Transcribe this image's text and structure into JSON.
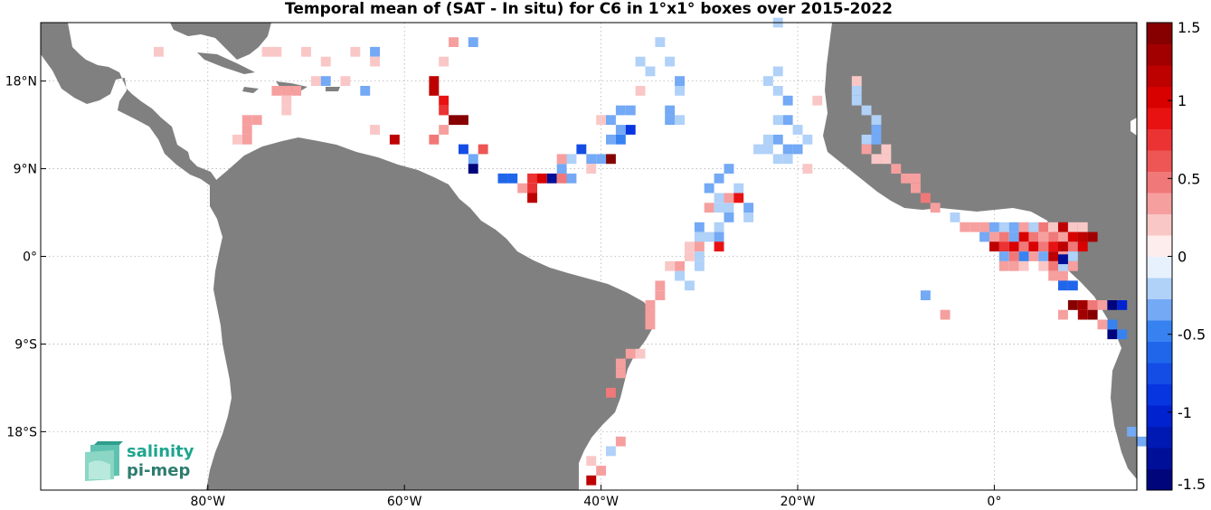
{
  "title": "Temporal mean of (SAT - In situ) for C6 in 1°x1° boxes over 2015-2022",
  "axes": {
    "lon_ticks": [
      {
        "value": -80,
        "label": "80°W"
      },
      {
        "value": -60,
        "label": "60°W"
      },
      {
        "value": -40,
        "label": "40°W"
      },
      {
        "value": -20,
        "label": "20°W"
      },
      {
        "value": 0,
        "label": "0°"
      }
    ],
    "lat_ticks": [
      {
        "value": 18,
        "label": "18°N"
      },
      {
        "value": 9,
        "label": "9°N"
      },
      {
        "value": 0,
        "label": "0°"
      },
      {
        "value": -9,
        "label": "9°S"
      },
      {
        "value": -18,
        "label": "18°S"
      }
    ],
    "lon_range": [
      -97,
      14.5
    ],
    "lat_range": [
      -24,
      24
    ],
    "grid": true
  },
  "colorbar": {
    "range": [
      -1.5,
      1.5
    ],
    "tick_labels": [
      {
        "value": 1.5,
        "label": "1.5"
      },
      {
        "value": 1,
        "label": "1"
      },
      {
        "value": 0.5,
        "label": "0.5"
      },
      {
        "value": 0,
        "label": "0"
      },
      {
        "value": -0.5,
        "label": "-0.5"
      },
      {
        "value": -1,
        "label": "-1"
      },
      {
        "value": -1.5,
        "label": "-1.5"
      }
    ]
  },
  "logo": {
    "line1": "salinity",
    "line2": "pi-mep"
  },
  "colors": {
    "land": "#808080",
    "ocean": "#ffffff",
    "positive": "#cc0000",
    "negative": "#0044cc"
  },
  "chart_data": {
    "type": "heatmap",
    "cell_size_deg": 1,
    "cells": [
      [
        -65,
        21,
        0.2
      ],
      [
        -63,
        21,
        -0.3
      ],
      [
        -63,
        20,
        0.2
      ],
      [
        -55,
        22,
        0.3
      ],
      [
        -53,
        22,
        -0.3
      ],
      [
        -56,
        20,
        0.2
      ],
      [
        -57,
        18,
        1.2
      ],
      [
        -57,
        17,
        1.1
      ],
      [
        -56,
        16,
        0.9
      ],
      [
        -56,
        15,
        0.7
      ],
      [
        -55,
        14,
        1.4
      ],
      [
        -54,
        14,
        1.4
      ],
      [
        -56,
        13,
        0.3
      ],
      [
        -61,
        12,
        1.2
      ],
      [
        -57,
        12,
        0.5
      ],
      [
        -54,
        11,
        -0.7
      ],
      [
        -53,
        10,
        -0.3
      ],
      [
        -52,
        11,
        0.6
      ],
      [
        -53,
        9,
        -1.4
      ],
      [
        -50,
        8,
        -0.6
      ],
      [
        -49,
        8,
        -0.6
      ],
      [
        -48,
        7,
        0.4
      ],
      [
        -47,
        8,
        0.7
      ],
      [
        -47,
        7,
        0.8
      ],
      [
        -47,
        6,
        1.1
      ],
      [
        -46,
        8,
        1.0
      ],
      [
        -45,
        8,
        -1.3
      ],
      [
        -44,
        8,
        0.5
      ],
      [
        -44,
        9,
        -0.3
      ],
      [
        -43,
        8,
        -0.3
      ],
      [
        -44,
        10,
        0.3
      ],
      [
        -43,
        10,
        -0.2
      ],
      [
        -42,
        11,
        -0.7
      ],
      [
        -40,
        14,
        0.2
      ],
      [
        -39,
        14,
        -0.4
      ],
      [
        -38,
        15,
        -0.4
      ],
      [
        -37,
        15,
        -0.3
      ],
      [
        -39,
        12,
        -0.4
      ],
      [
        -38,
        12,
        -0.5
      ],
      [
        -38,
        13,
        -0.3
      ],
      [
        -37,
        13,
        -0.9
      ],
      [
        -39,
        10,
        1.4
      ],
      [
        -40,
        10,
        -0.3
      ],
      [
        -41,
        10,
        -0.3
      ],
      [
        -41,
        9,
        0.2
      ],
      [
        -36,
        17,
        0.2
      ],
      [
        -36,
        20,
        -0.2
      ],
      [
        -35,
        19,
        -0.2
      ],
      [
        -34,
        22,
        -0.2
      ],
      [
        -33,
        20,
        -0.2
      ],
      [
        -32,
        18,
        -0.3
      ],
      [
        -32,
        17,
        -0.2
      ],
      [
        -33,
        15,
        -0.3
      ],
      [
        -32,
        14,
        -0.2
      ],
      [
        -33,
        14,
        -0.3
      ],
      [
        -23,
        18,
        -0.2
      ],
      [
        -22,
        19,
        -0.2
      ],
      [
        -22,
        24,
        -0.2
      ],
      [
        -22,
        17,
        -0.2
      ],
      [
        -21,
        16,
        -0.3
      ],
      [
        -21,
        14,
        -0.3
      ],
      [
        -22,
        14,
        -0.2
      ],
      [
        -23,
        12,
        -0.2
      ],
      [
        -22,
        12,
        -0.3
      ],
      [
        -24,
        11,
        -0.2
      ],
      [
        -23,
        11,
        -0.2
      ],
      [
        -21,
        11,
        -0.3
      ],
      [
        -20,
        11,
        -0.4
      ],
      [
        -21,
        10,
        -0.2
      ],
      [
        -22,
        10,
        -0.2
      ],
      [
        -19,
        12,
        -0.2
      ],
      [
        -20,
        13,
        -0.2
      ],
      [
        -19,
        9,
        0.2
      ],
      [
        -18,
        16,
        0.2
      ],
      [
        -14,
        18,
        0.2
      ],
      [
        -14,
        17,
        -0.2
      ],
      [
        -14,
        16,
        -0.2
      ],
      [
        -13,
        15,
        -0.2
      ],
      [
        -12,
        14,
        -0.2
      ],
      [
        -12,
        13,
        -0.3
      ],
      [
        -13,
        12,
        -0.2
      ],
      [
        -12,
        12,
        -0.3
      ],
      [
        -13,
        11,
        0.4
      ],
      [
        -11,
        11,
        0.2
      ],
      [
        -12,
        10,
        0.2
      ],
      [
        -11,
        10,
        0.2
      ],
      [
        -10,
        9,
        0.3
      ],
      [
        -9,
        8,
        0.4
      ],
      [
        -8,
        7,
        0.4
      ],
      [
        -7,
        6,
        0.5
      ],
      [
        -6,
        5,
        0.3
      ],
      [
        -8,
        8,
        0.3
      ],
      [
        -29,
        7,
        -0.4
      ],
      [
        -28,
        8,
        -0.3
      ],
      [
        -27,
        9,
        -0.3
      ],
      [
        -29,
        5,
        0.3
      ],
      [
        -28,
        5,
        -0.2
      ],
      [
        -27,
        5,
        -0.2
      ],
      [
        -28,
        6,
        -0.2
      ],
      [
        -27,
        6,
        0.3
      ],
      [
        -26,
        7,
        -0.2
      ],
      [
        -26,
        6,
        0.9
      ],
      [
        -27,
        4,
        -0.3
      ],
      [
        -25,
        5,
        -0.3
      ],
      [
        -25,
        4,
        -0.2
      ],
      [
        -28,
        3,
        -0.2
      ],
      [
        -30,
        3,
        -0.3
      ],
      [
        -30,
        2,
        -0.2
      ],
      [
        -31,
        1,
        0.2
      ],
      [
        -30,
        1,
        0.3
      ],
      [
        -28,
        2,
        -0.3
      ],
      [
        -28,
        1,
        0.9
      ],
      [
        -29,
        2,
        -0.2
      ],
      [
        -30,
        0,
        -0.2
      ],
      [
        -31,
        0,
        0.2
      ],
      [
        -32,
        -1,
        0.4
      ],
      [
        -33,
        -1,
        0.2
      ],
      [
        -32,
        -2,
        -0.2
      ],
      [
        -30,
        -1,
        -0.2
      ],
      [
        -31,
        -3,
        -0.2
      ],
      [
        -34,
        -3,
        0.3
      ],
      [
        -34,
        -4,
        0.3
      ],
      [
        -35,
        -5,
        0.3
      ],
      [
        -35,
        -6,
        0.3
      ],
      [
        -35,
        -7,
        0.3
      ],
      [
        -37,
        -10,
        0.3
      ],
      [
        -36,
        -10,
        0.2
      ],
      [
        -38,
        -11,
        0.4
      ],
      [
        -38,
        -12,
        0.3
      ],
      [
        -39,
        -14,
        0.5
      ],
      [
        -38,
        -19,
        0.3
      ],
      [
        -39,
        -20,
        -0.2
      ],
      [
        -41,
        -21,
        0.2
      ],
      [
        -40,
        -22,
        0.4
      ],
      [
        -41,
        -23,
        1.1
      ],
      [
        -4,
        4,
        -0.2
      ],
      [
        -3,
        3,
        0.3
      ],
      [
        -2,
        3,
        0.3
      ],
      [
        -1,
        3,
        0.3
      ],
      [
        0,
        3,
        -0.3
      ],
      [
        1,
        3,
        -0.2
      ],
      [
        2,
        3,
        -0.3
      ],
      [
        3,
        3,
        0.3
      ],
      [
        4,
        3,
        -0.2
      ],
      [
        5,
        3,
        0.5
      ],
      [
        6,
        3,
        0.2
      ],
      [
        7,
        3,
        1.1
      ],
      [
        8,
        3,
        0.2
      ],
      [
        9,
        3,
        0.2
      ],
      [
        -1,
        2,
        -0.3
      ],
      [
        0,
        2,
        0.4
      ],
      [
        1,
        2,
        0.5
      ],
      [
        2,
        2,
        -0.3
      ],
      [
        3,
        2,
        1.0
      ],
      [
        4,
        2,
        0.5
      ],
      [
        5,
        2,
        0.3
      ],
      [
        6,
        2,
        0.5
      ],
      [
        7,
        2,
        0.3
      ],
      [
        8,
        2,
        1.0
      ],
      [
        9,
        2,
        1.2
      ],
      [
        10,
        2,
        1.3
      ],
      [
        0,
        1,
        1.1
      ],
      [
        1,
        1,
        0.8
      ],
      [
        2,
        1,
        1.0
      ],
      [
        3,
        1,
        0.5
      ],
      [
        4,
        1,
        1.0
      ],
      [
        5,
        1,
        0.5
      ],
      [
        6,
        1,
        0.9
      ],
      [
        7,
        1,
        1.1
      ],
      [
        8,
        1,
        0.5
      ],
      [
        9,
        1,
        1.0
      ],
      [
        1,
        0,
        -0.3
      ],
      [
        2,
        0,
        0.5
      ],
      [
        3,
        0,
        -0.5
      ],
      [
        4,
        0,
        0.3
      ],
      [
        5,
        0,
        -0.3
      ],
      [
        6,
        0,
        1.2
      ],
      [
        7,
        0,
        0.4
      ],
      [
        8,
        0,
        -0.2
      ],
      [
        1,
        -1,
        0.3
      ],
      [
        2,
        -1,
        0.3
      ],
      [
        3,
        -1,
        0.2
      ],
      [
        5,
        -1,
        0.2
      ],
      [
        6,
        -1,
        0.5
      ],
      [
        7,
        -1,
        -0.2
      ],
      [
        8,
        -1,
        0.4
      ],
      [
        7,
        -0.3,
        -1.3
      ],
      [
        6,
        -2,
        0.3
      ],
      [
        7,
        -2,
        0.3
      ],
      [
        7,
        -3,
        -0.6
      ],
      [
        8,
        -3,
        -0.6
      ],
      [
        -7,
        -4,
        -0.4
      ],
      [
        -5,
        -6,
        0.3
      ],
      [
        8,
        -5,
        1.4
      ],
      [
        9,
        -5,
        1.3
      ],
      [
        10,
        -5,
        0.5
      ],
      [
        9,
        -6,
        1.3
      ],
      [
        10,
        -6,
        1.4
      ],
      [
        11,
        -5,
        0.4
      ],
      [
        12,
        -5,
        -1.5
      ],
      [
        13,
        -5,
        -1.0
      ],
      [
        7,
        -6,
        0.3
      ],
      [
        11,
        -7,
        0.3
      ],
      [
        12,
        -7,
        -0.5
      ],
      [
        12,
        -8,
        -1.5
      ],
      [
        13,
        -8,
        -0.5
      ],
      [
        14,
        -18,
        -0.3
      ],
      [
        15,
        -19,
        -0.3
      ],
      [
        -76,
        14,
        0.4
      ],
      [
        -75,
        14,
        0.3
      ],
      [
        -76,
        12,
        0.3
      ],
      [
        -77,
        12,
        0.2
      ],
      [
        -76,
        13,
        0.3
      ],
      [
        -72,
        17,
        0.3
      ],
      [
        -73,
        17,
        0.3
      ],
      [
        -71,
        17,
        0.3
      ],
      [
        -72,
        16,
        0.2
      ],
      [
        -72,
        15,
        0.2
      ],
      [
        -69,
        18,
        0.2
      ],
      [
        -68,
        18,
        -0.3
      ],
      [
        -66,
        18,
        0.2
      ],
      [
        -64,
        17,
        -0.3
      ],
      [
        -63,
        13,
        0.2
      ],
      [
        -74,
        21,
        0.2
      ],
      [
        -73,
        21,
        0.2
      ],
      [
        -70,
        21,
        0.2
      ],
      [
        -68,
        20,
        0.2
      ],
      [
        -85,
        21,
        0.2
      ]
    ]
  }
}
